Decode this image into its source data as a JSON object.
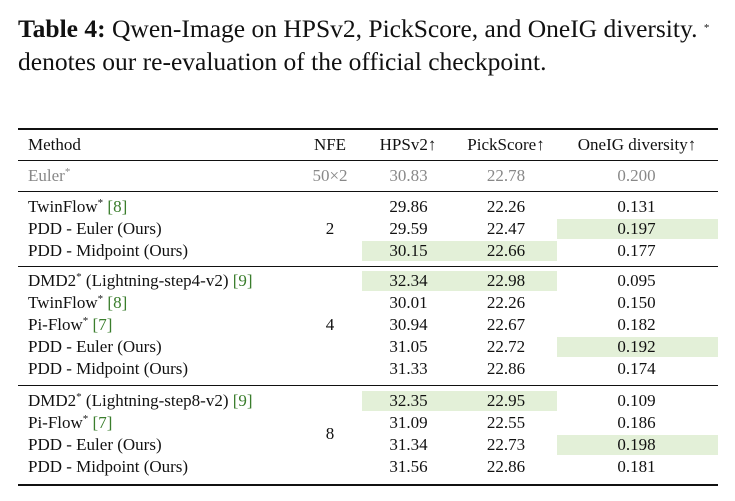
{
  "caption": {
    "label": "Table 4:",
    "text": "Qwen-Image on HPSv2, PickScore, and OneIG diversity.",
    "mark": "*",
    "text2": "denotes our re-evaluation of the official checkpoint."
  },
  "table": {
    "header": [
      "Method",
      "NFE",
      "HPSv2↑",
      "PickScore↑",
      "OneIG diversity↑"
    ],
    "reference": {
      "method": {
        "name": "Euler",
        "star": "*"
      },
      "nfe": "50×2",
      "hpsv2": "30.83",
      "pickscore": "22.78",
      "diversity": "0.200"
    },
    "groups": [
      {
        "nfe": "2",
        "rows": [
          {
            "method": {
              "name": "TwinFlow",
              "star": "*",
              "cite": "[8]"
            },
            "hpsv2": "29.86",
            "pickscore": "22.26",
            "diversity": "0.131"
          },
          {
            "method": {
              "name": "PDD - Euler (Ours)"
            },
            "hpsv2": "29.59",
            "pickscore": "22.47",
            "diversity": "0.197",
            "highlight": [
              "diversity"
            ]
          },
          {
            "method": {
              "name": "PDD - Midpoint (Ours)"
            },
            "hpsv2": "30.15",
            "pickscore": "22.66",
            "diversity": "0.177",
            "highlight": [
              "hpsv2",
              "pickscore"
            ]
          }
        ]
      },
      {
        "nfe": "4",
        "rows": [
          {
            "method": {
              "name": "DMD2",
              "star": "*",
              "suffix": "(Lightning-step4-v2)",
              "cite": "[9]"
            },
            "hpsv2": "32.34",
            "pickscore": "22.98",
            "diversity": "0.095",
            "highlight": [
              "hpsv2",
              "pickscore"
            ]
          },
          {
            "method": {
              "name": "TwinFlow",
              "star": "*",
              "cite": "[8]"
            },
            "hpsv2": "30.01",
            "pickscore": "22.26",
            "diversity": "0.150"
          },
          {
            "method": {
              "name": "Pi-Flow",
              "star": "*",
              "cite": "[7]"
            },
            "hpsv2": "30.94",
            "pickscore": "22.67",
            "diversity": "0.182"
          },
          {
            "method": {
              "name": "PDD - Euler (Ours)"
            },
            "hpsv2": "31.05",
            "pickscore": "22.72",
            "diversity": "0.192",
            "highlight": [
              "diversity"
            ]
          },
          {
            "method": {
              "name": "PDD - Midpoint (Ours)"
            },
            "hpsv2": "31.33",
            "pickscore": "22.86",
            "diversity": "0.174"
          }
        ]
      },
      {
        "nfe": "8",
        "rows": [
          {
            "method": {
              "name": "DMD2",
              "star": "*",
              "suffix": "(Lightning-step8-v2)",
              "cite": "[9]"
            },
            "hpsv2": "32.35",
            "pickscore": "22.95",
            "diversity": "0.109",
            "highlight": [
              "hpsv2",
              "pickscore"
            ]
          },
          {
            "method": {
              "name": "Pi-Flow",
              "star": "*",
              "cite": "[7]"
            },
            "hpsv2": "31.09",
            "pickscore": "22.55",
            "diversity": "0.186"
          },
          {
            "method": {
              "name": "PDD - Euler (Ours)"
            },
            "hpsv2": "31.34",
            "pickscore": "22.73",
            "diversity": "0.198",
            "highlight": [
              "diversity"
            ]
          },
          {
            "method": {
              "name": "PDD - Midpoint (Ours)"
            },
            "hpsv2": "31.56",
            "pickscore": "22.86",
            "diversity": "0.181"
          }
        ]
      }
    ]
  }
}
